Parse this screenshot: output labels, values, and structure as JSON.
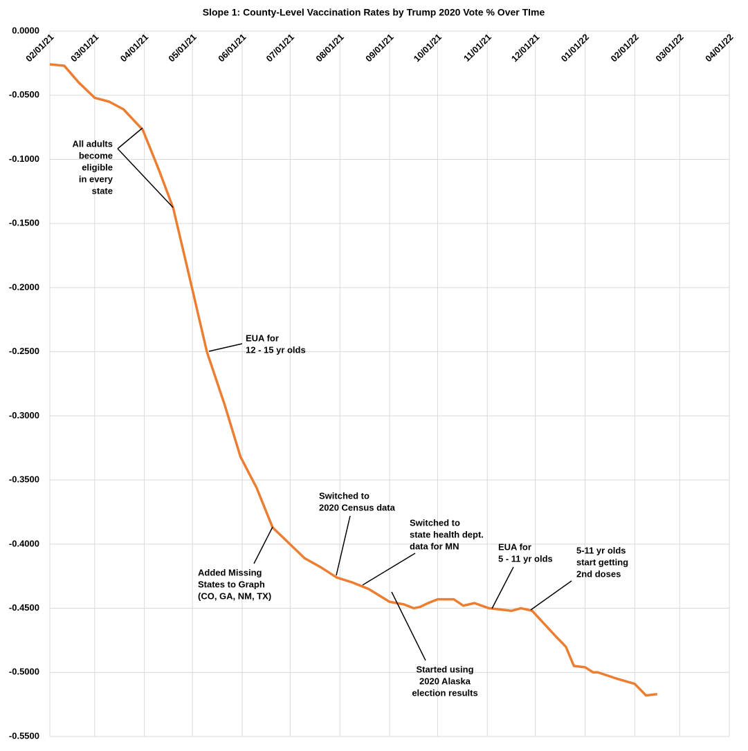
{
  "chart_data": {
    "type": "line",
    "title": "Slope 1: County-Level Vaccination Rates by Trump 2020 Vote % Over TIme",
    "x": [
      "2021-02-01",
      "2021-02-10",
      "2021-02-19",
      "2021-03-01",
      "2021-03-10",
      "2021-03-19",
      "2021-03-31",
      "2021-04-10",
      "2021-04-19",
      "2021-04-29",
      "2021-05-10",
      "2021-05-21",
      "2021-05-31",
      "2021-06-10",
      "2021-06-20",
      "2021-06-30",
      "2021-07-10",
      "2021-07-20",
      "2021-07-30",
      "2021-08-09",
      "2021-08-19",
      "2021-09-01",
      "2021-09-10",
      "2021-09-16",
      "2021-09-20",
      "2021-09-25",
      "2021-10-01",
      "2021-10-11",
      "2021-10-17",
      "2021-10-24",
      "2021-11-02",
      "2021-11-16",
      "2021-11-22",
      "2021-11-29",
      "2021-12-13",
      "2021-12-20",
      "2021-12-25",
      "2022-01-01",
      "2022-01-06",
      "2022-01-09",
      "2022-01-21",
      "2022-02-01",
      "2022-02-08",
      "2022-02-15"
    ],
    "series": [
      {
        "name": "Slope",
        "color": "#ed7d31",
        "values": [
          -0.0259,
          -0.027,
          -0.04,
          -0.052,
          -0.055,
          -0.061,
          -0.077,
          -0.108,
          -0.138,
          -0.191,
          -0.25,
          -0.291,
          -0.332,
          -0.356,
          -0.387,
          -0.399,
          -0.411,
          -0.418,
          -0.426,
          -0.43,
          -0.435,
          -0.445,
          -0.447,
          -0.45,
          -0.449,
          -0.446,
          -0.443,
          -0.443,
          -0.448,
          -0.446,
          -0.45,
          -0.452,
          -0.45,
          -0.452,
          -0.471,
          -0.48,
          -0.495,
          -0.496,
          -0.5,
          -0.5,
          -0.505,
          -0.509,
          -0.518,
          -0.517
        ]
      }
    ],
    "xlim": [
      "2021-02-01",
      "2022-04-01"
    ],
    "xticks": [
      {
        "value": "2021-02-01",
        "label": "02/01/21"
      },
      {
        "value": "2021-03-01",
        "label": "03/01/21"
      },
      {
        "value": "2021-04-01",
        "label": "04/01/21"
      },
      {
        "value": "2021-05-01",
        "label": "05/01/21"
      },
      {
        "value": "2021-06-01",
        "label": "06/01/21"
      },
      {
        "value": "2021-07-01",
        "label": "07/01/21"
      },
      {
        "value": "2021-08-01",
        "label": "08/01/21"
      },
      {
        "value": "2021-09-01",
        "label": "09/01/21"
      },
      {
        "value": "2021-10-01",
        "label": "10/01/21"
      },
      {
        "value": "2021-11-01",
        "label": "11/01/21"
      },
      {
        "value": "2021-12-01",
        "label": "12/01/21"
      },
      {
        "value": "2022-01-01",
        "label": "01/01/22"
      },
      {
        "value": "2022-02-01",
        "label": "02/01/22"
      },
      {
        "value": "2022-03-01",
        "label": "03/01/22"
      },
      {
        "value": "2022-04-01",
        "label": "04/01/22"
      }
    ],
    "ylim": [
      -0.55,
      0
    ],
    "yticks": [
      {
        "value": 0,
        "label": "0.0000"
      },
      {
        "value": -0.05,
        "label": "-0.0500"
      },
      {
        "value": -0.1,
        "label": "-0.1000"
      },
      {
        "value": -0.15,
        "label": "-0.1500"
      },
      {
        "value": -0.2,
        "label": "-0.2000"
      },
      {
        "value": -0.25,
        "label": "-0.2500"
      },
      {
        "value": -0.3,
        "label": "-0.3000"
      },
      {
        "value": -0.35,
        "label": "-0.3500"
      },
      {
        "value": -0.4,
        "label": "-0.4000"
      },
      {
        "value": -0.45,
        "label": "-0.4500"
      },
      {
        "value": -0.5,
        "label": "-0.5000"
      },
      {
        "value": -0.55,
        "label": "-0.5500"
      }
    ],
    "grid": true,
    "annotations": [
      {
        "text": [
          "All adults",
          "become",
          "eligible",
          "in every",
          "state"
        ]
      },
      {
        "text": [
          "EUA for",
          "12 - 15 yr olds"
        ]
      },
      {
        "text": [
          "Added Missing",
          "States to Graph",
          "(CO, GA, NM, TX)"
        ]
      },
      {
        "text": [
          "Switched to",
          "2020 Census data"
        ]
      },
      {
        "text": [
          "Switched to",
          "state health dept.",
          "data for MN"
        ]
      },
      {
        "text": [
          "EUA for",
          "5 - 11 yr olds"
        ]
      },
      {
        "text": [
          "5-11 yr olds",
          "start getting",
          "2nd doses"
        ]
      },
      {
        "text": [
          "Started using",
          "2020 Alaska",
          "election results"
        ]
      }
    ]
  }
}
